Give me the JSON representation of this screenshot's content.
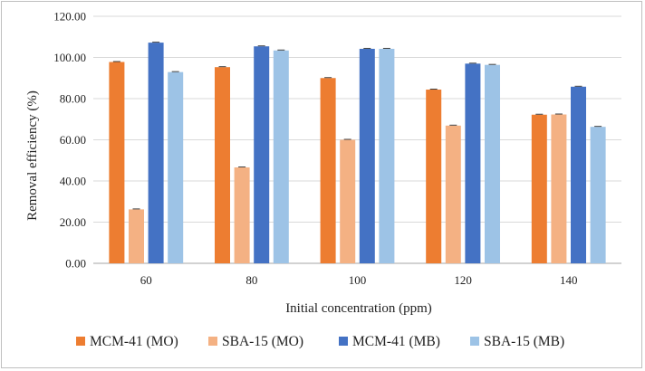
{
  "chart_data": {
    "type": "bar",
    "title": "",
    "xlabel": "Initial concentration (ppm)",
    "ylabel": "Removal efficiency (%)",
    "ylim": [
      0,
      120
    ],
    "ytick_step": 20,
    "ytick_labels": [
      "0.00",
      "20.00",
      "40.00",
      "60.00",
      "80.00",
      "100.00",
      "120.00"
    ],
    "grid": true,
    "legend_position": "bottom",
    "categories": [
      "60",
      "80",
      "100",
      "120",
      "140"
    ],
    "series": [
      {
        "name": "MCM-41 (MO)",
        "color": "#ED7D31",
        "values": [
          97.8,
          95.3,
          90.0,
          84.4,
          72.2
        ]
      },
      {
        "name": "SBA-15 (MO)",
        "color": "#F4B183",
        "values": [
          26.2,
          46.6,
          60.0,
          66.9,
          72.3
        ]
      },
      {
        "name": "MCM-41 (MB)",
        "color": "#4472C4",
        "values": [
          107.2,
          105.4,
          104.2,
          97.0,
          85.8
        ]
      },
      {
        "name": "SBA-15 (MB)",
        "color": "#9DC3E6",
        "values": [
          92.9,
          103.4,
          104.2,
          96.4,
          66.3
        ]
      }
    ]
  }
}
